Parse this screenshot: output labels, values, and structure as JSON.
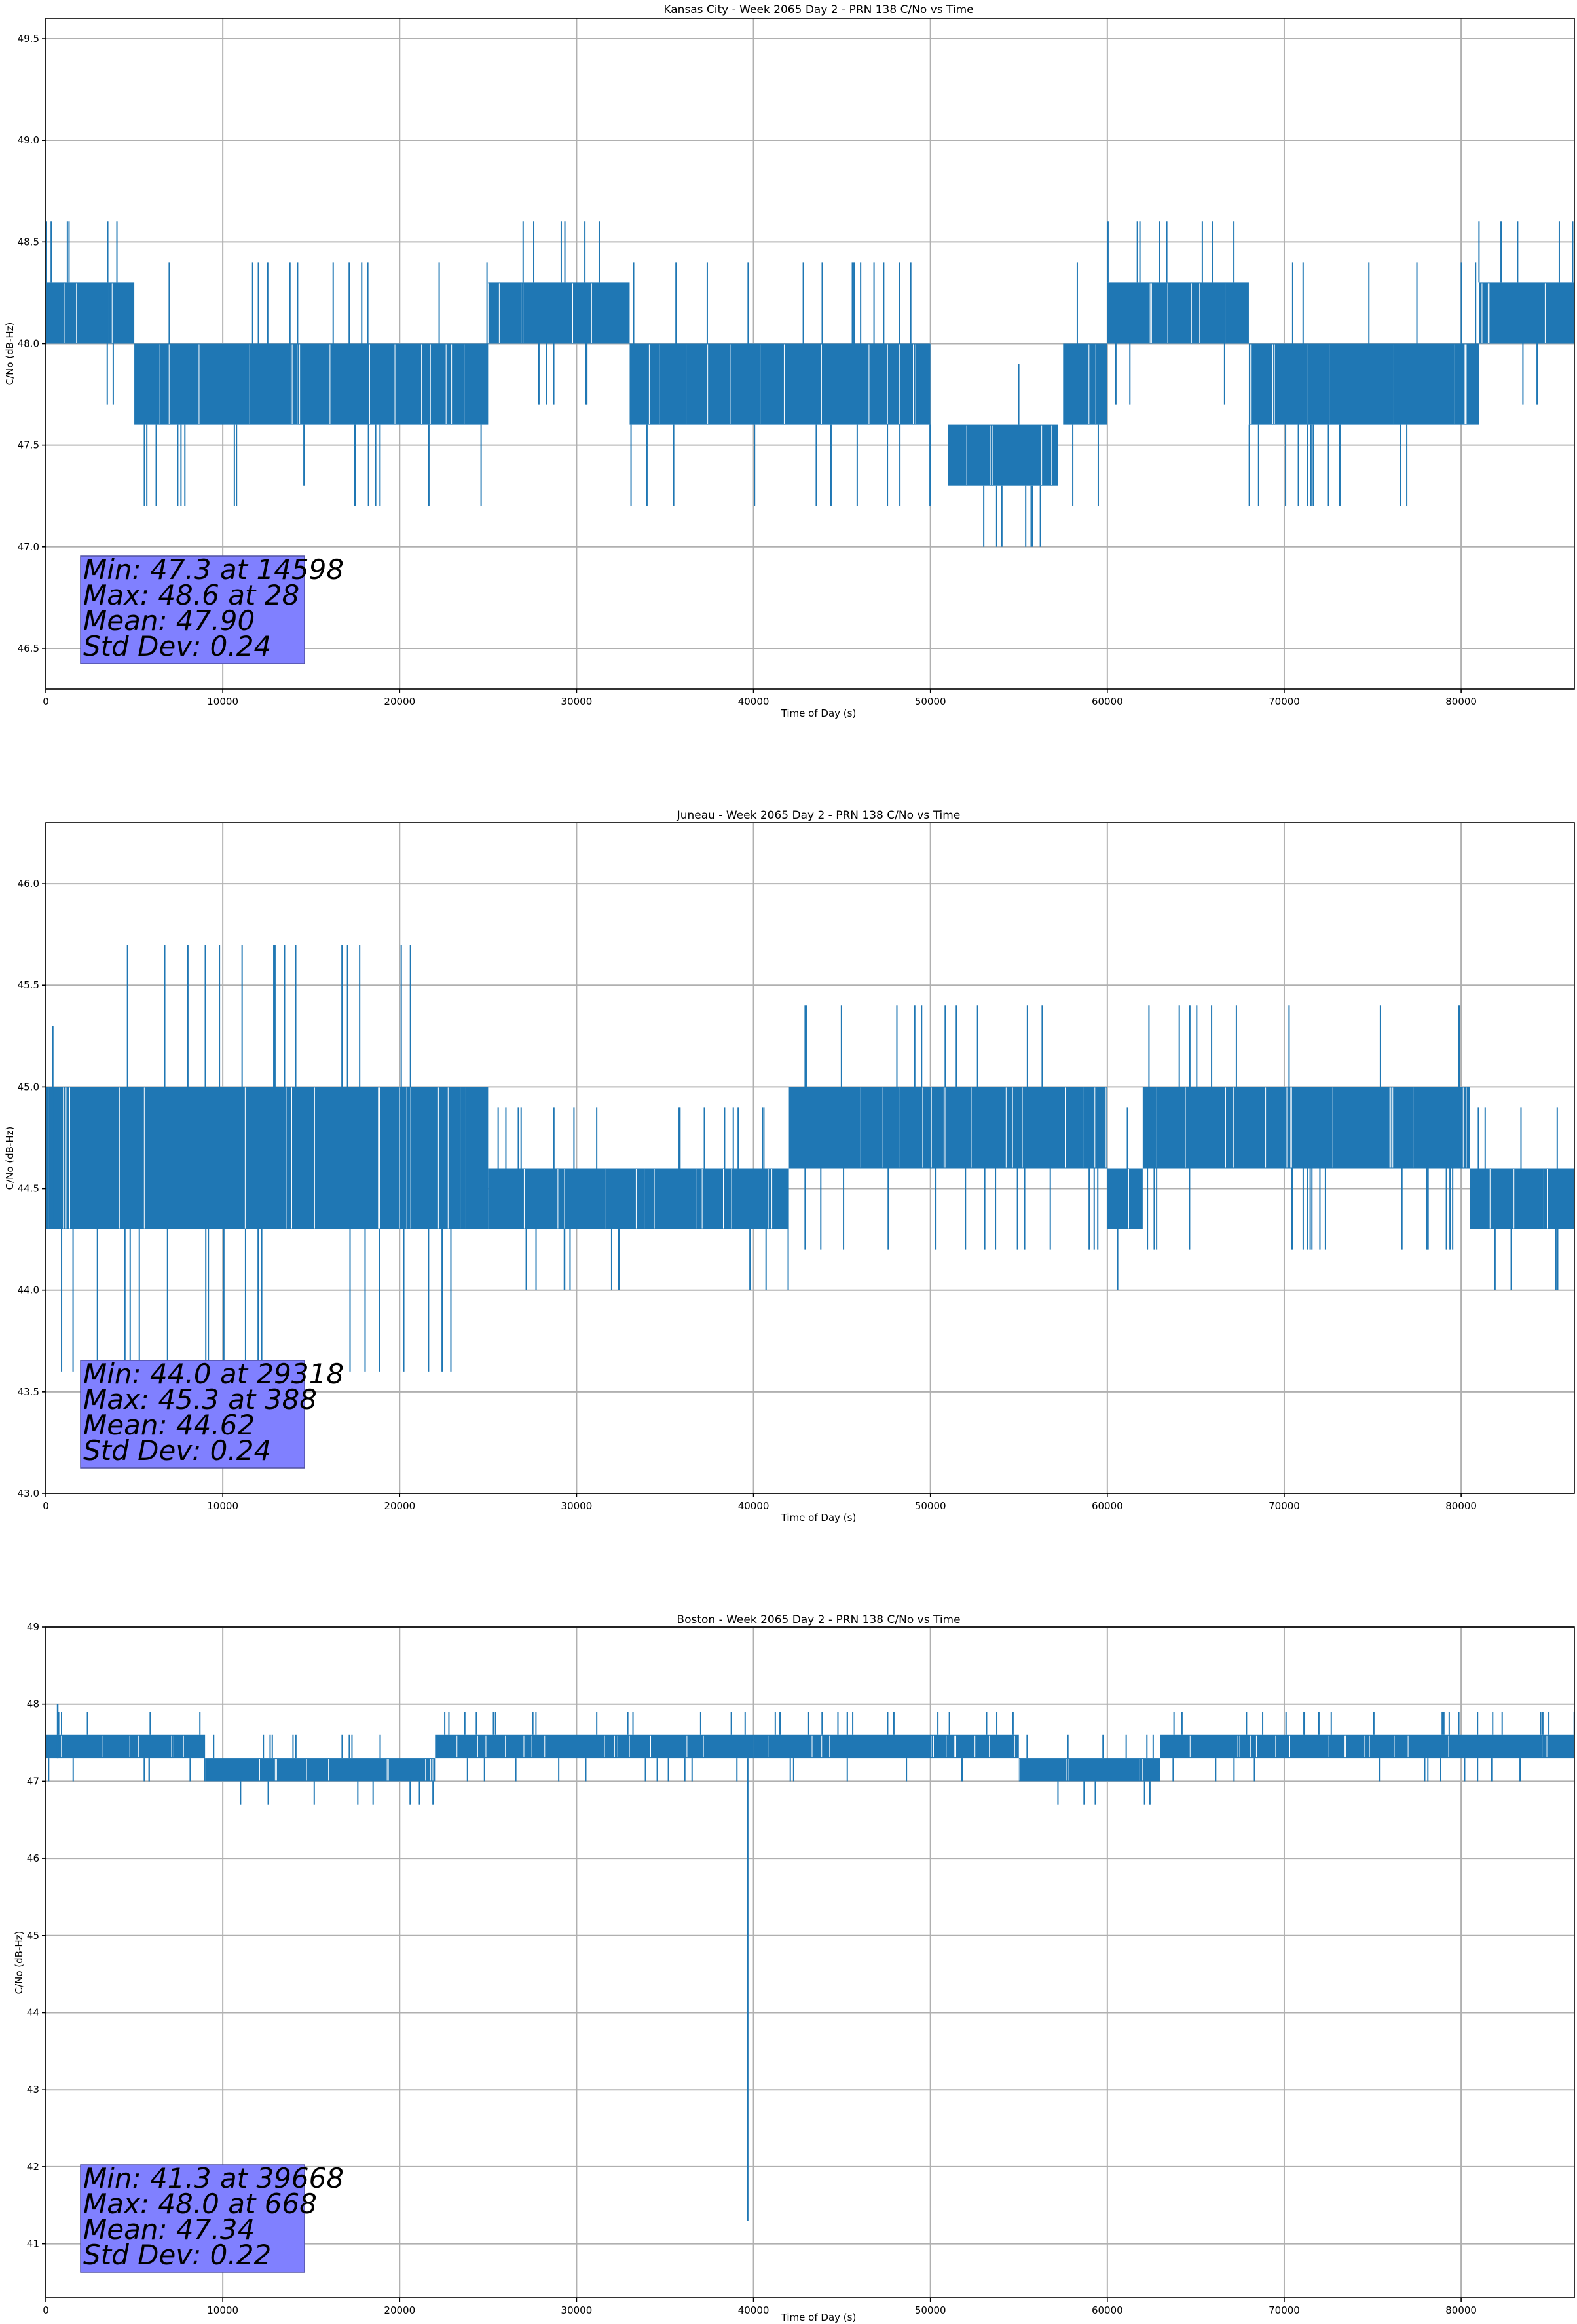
{
  "colors": {
    "series": "#1f77b4",
    "stats_box": "#8080ff",
    "grid": "#b0b0b0"
  },
  "chart_data": [
    {
      "type": "line",
      "title": "Kansas City - Week 2065 Day 2 - PRN 138 C/No vs Time",
      "xlabel": "Time of Day (s)",
      "ylabel": "C/No (dB-Hz)",
      "xlim": [
        0,
        86400
      ],
      "ylim": [
        46.3,
        49.6
      ],
      "grid": true,
      "xticks": [
        0,
        10000,
        20000,
        30000,
        40000,
        50000,
        60000,
        70000,
        80000
      ],
      "xtick_labels": [
        "0",
        "10000",
        "20000",
        "30000",
        "40000",
        "50000",
        "60000",
        "70000",
        "80000"
      ],
      "yticks": [
        46.5,
        47.0,
        47.5,
        48.0,
        48.5,
        49.0,
        49.5
      ],
      "ytick_labels": [
        "46.5",
        "47.0",
        "47.5",
        "48.0",
        "48.5",
        "49.0",
        "49.5"
      ],
      "series": [
        {
          "name": "PRN 138 C/No",
          "band_segments": [
            {
              "x0": 0,
              "x1": 5000,
              "lo": 48.0,
              "hi": 48.3
            },
            {
              "x0": 5000,
              "x1": 25000,
              "lo": 47.6,
              "hi": 48.0
            },
            {
              "x0": 25000,
              "x1": 33000,
              "lo": 48.0,
              "hi": 48.3
            },
            {
              "x0": 33000,
              "x1": 50000,
              "lo": 47.6,
              "hi": 48.0
            },
            {
              "x0": 51000,
              "x1": 57200,
              "lo": 47.3,
              "hi": 47.6
            },
            {
              "x0": 57500,
              "x1": 60000,
              "lo": 47.6,
              "hi": 48.0
            },
            {
              "x0": 60000,
              "x1": 68000,
              "lo": 48.0,
              "hi": 48.3
            },
            {
              "x0": 68000,
              "x1": 81000,
              "lo": 47.6,
              "hi": 48.0
            },
            {
              "x0": 81000,
              "x1": 86400,
              "lo": 48.0,
              "hi": 48.3
            }
          ],
          "spikes": [
            {
              "x": 28,
              "lo": 48.0,
              "hi": 48.6
            },
            {
              "x": 14598,
              "lo": 47.3,
              "hi": 47.6
            }
          ]
        }
      ],
      "stats": {
        "min_line": "Min: 47.3 at 14598",
        "max_line": "Max: 48.6 at 28",
        "mean_line": "Mean: 47.90",
        "std_line": "Std Dev: 0.24"
      }
    },
    {
      "type": "line",
      "title": "Juneau - Week 2065 Day 2 - PRN 138 C/No vs Time",
      "xlabel": "Time of Day (s)",
      "ylabel": "C/No (dB-Hz)",
      "xlim": [
        0,
        86400
      ],
      "ylim": [
        43.0,
        46.3
      ],
      "grid": true,
      "xticks": [
        0,
        10000,
        20000,
        30000,
        40000,
        50000,
        60000,
        70000,
        80000
      ],
      "xtick_labels": [
        "0",
        "10000",
        "20000",
        "30000",
        "40000",
        "50000",
        "60000",
        "70000",
        "80000"
      ],
      "yticks": [
        43.0,
        43.5,
        44.0,
        44.5,
        45.0,
        45.5,
        46.0
      ],
      "ytick_labels": [
        "43.0",
        "43.5",
        "44.0",
        "44.5",
        "45.0",
        "45.5",
        "46.0"
      ],
      "series": [
        {
          "name": "PRN 138 C/No",
          "band_segments": [
            {
              "x0": 0,
              "x1": 25000,
              "lo": 44.3,
              "hi": 45.0
            },
            {
              "x0": 25000,
              "x1": 42000,
              "lo": 44.3,
              "hi": 44.6
            },
            {
              "x0": 42000,
              "x1": 60000,
              "lo": 44.6,
              "hi": 45.0
            },
            {
              "x0": 60000,
              "x1": 62000,
              "lo": 44.3,
              "hi": 44.6
            },
            {
              "x0": 62000,
              "x1": 80500,
              "lo": 44.6,
              "hi": 45.0
            },
            {
              "x0": 80500,
              "x1": 86400,
              "lo": 44.3,
              "hi": 44.6
            }
          ],
          "spikes": [
            {
              "x": 388,
              "lo": 44.3,
              "hi": 45.3
            },
            {
              "x": 29318,
              "lo": 44.0,
              "hi": 44.3
            }
          ]
        }
      ],
      "stats": {
        "min_line": "Min: 44.0 at 29318",
        "max_line": "Max: 45.3 at 388",
        "mean_line": "Mean: 44.62",
        "std_line": "Std Dev: 0.24"
      }
    },
    {
      "type": "line",
      "title": "Boston - Week 2065 Day 2 - PRN 138 C/No vs Time",
      "xlabel": "Time of Day (s)",
      "ylabel": "C/No (dB-Hz)",
      "xlim": [
        0,
        86400
      ],
      "ylim": [
        40.3,
        49.0
      ],
      "grid": true,
      "xticks": [
        0,
        10000,
        20000,
        30000,
        40000,
        50000,
        60000,
        70000,
        80000
      ],
      "xtick_labels": [
        "0",
        "10000",
        "20000",
        "30000",
        "40000",
        "50000",
        "60000",
        "70000",
        "80000"
      ],
      "yticks": [
        41,
        42,
        43,
        44,
        45,
        46,
        47,
        48,
        49
      ],
      "ytick_labels": [
        "41",
        "42",
        "43",
        "44",
        "45",
        "46",
        "47",
        "48",
        "49"
      ],
      "series": [
        {
          "name": "PRN 138 C/No",
          "band_segments": [
            {
              "x0": 0,
              "x1": 9000,
              "lo": 47.3,
              "hi": 47.6
            },
            {
              "x0": 9000,
              "x1": 22000,
              "lo": 47.0,
              "hi": 47.3
            },
            {
              "x0": 22000,
              "x1": 40000,
              "lo": 47.3,
              "hi": 47.6
            },
            {
              "x0": 40000,
              "x1": 55000,
              "lo": 47.3,
              "hi": 47.6
            },
            {
              "x0": 55000,
              "x1": 63000,
              "lo": 47.0,
              "hi": 47.3
            },
            {
              "x0": 63000,
              "x1": 86400,
              "lo": 47.3,
              "hi": 47.6
            }
          ],
          "spikes": [
            {
              "x": 668,
              "lo": 47.3,
              "hi": 48.0
            },
            {
              "x": 39668,
              "lo": 41.3,
              "hi": 47.3
            }
          ]
        }
      ],
      "stats": {
        "min_line": "Min: 41.3 at 39668",
        "max_line": "Max: 48.0 at 668",
        "mean_line": "Mean: 47.34",
        "std_line": "Std Dev: 0.22"
      }
    }
  ]
}
